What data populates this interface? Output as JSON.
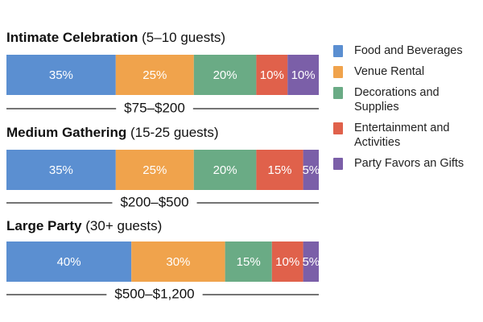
{
  "chart_data": {
    "type": "bar",
    "orientation": "horizontal",
    "stacked": true,
    "categories": [
      "Intimate Celebration",
      "Medium Gathering",
      "Large Party"
    ],
    "category_notes": [
      "(5–10 guests)",
      "(15-25 guests)",
      "(30+ guests)"
    ],
    "budgets": [
      "$75–$200",
      "$200–$500",
      "$500–$1,200"
    ],
    "series": [
      {
        "name": "Food and Beverages",
        "color": "#5b8fd1",
        "values": [
          35,
          35,
          40
        ],
        "value_labels": [
          "35%",
          "35%",
          "40%"
        ]
      },
      {
        "name": "Venue Rental",
        "color": "#f0a34c",
        "values": [
          25,
          25,
          30
        ],
        "value_labels": [
          "25%",
          "25%",
          "30%"
        ]
      },
      {
        "name": "Decorations and Supplies",
        "color": "#6aab85",
        "values": [
          20,
          20,
          15
        ],
        "value_labels": [
          "20%",
          "20%",
          "15%"
        ]
      },
      {
        "name": "Entertainment and Activities",
        "color": "#e0614b",
        "values": [
          10,
          15,
          10
        ],
        "value_labels": [
          "10%",
          "15%",
          "10%"
        ]
      },
      {
        "name": "Party Favors an Gifts",
        "color": "#7b5fa8",
        "values": [
          10,
          5,
          5
        ],
        "value_labels": [
          "10%",
          "5%",
          "5%"
        ]
      }
    ]
  }
}
